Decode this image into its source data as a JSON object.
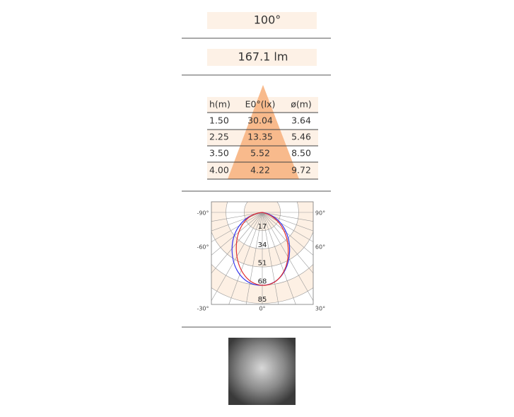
{
  "beam_angle": "100°",
  "luminous_flux": "167.1 lm",
  "table": {
    "header": [
      "h(m)",
      "E0°(lx)",
      "ø(m)"
    ],
    "rows": [
      [
        "1.50",
        "30.04",
        "3.64"
      ],
      [
        "2.25",
        "13.35",
        "5.46"
      ],
      [
        "3.50",
        "5.52",
        "8.50"
      ],
      [
        "4.00",
        "4.22",
        "9.72"
      ]
    ]
  },
  "polar": {
    "angle_labels": [
      "-90°",
      "90°",
      "-60°",
      "60°",
      "-30°",
      "0°",
      "30°"
    ],
    "radial_labels": [
      17,
      34,
      51,
      68,
      85
    ]
  }
}
